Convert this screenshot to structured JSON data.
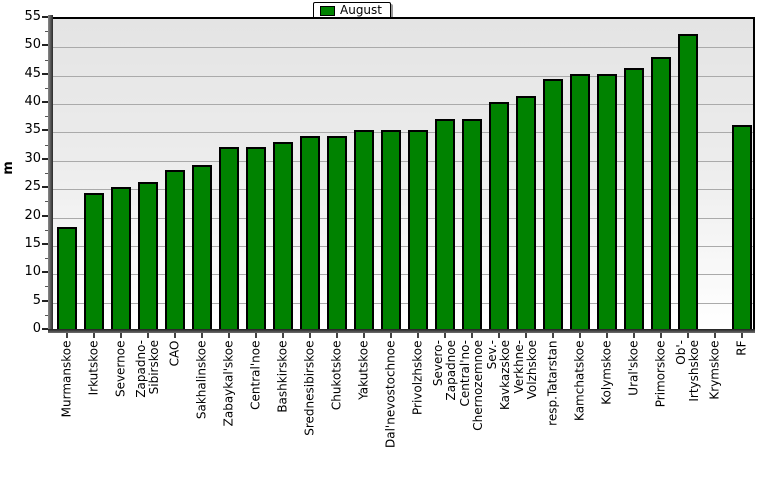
{
  "chart_data": {
    "type": "bar",
    "title": "",
    "ylabel": "m",
    "xlabel": "",
    "ylim": [
      0,
      55
    ],
    "ytick_step": 5,
    "ytick_labels": [
      "0",
      "5",
      "10",
      "15",
      "20",
      "25",
      "30",
      "35",
      "40",
      "45",
      "50",
      "55"
    ],
    "grid": "horizontal-major",
    "legend": {
      "position": "top-center",
      "entries": [
        {
          "label": "August",
          "color": "#008200"
        }
      ]
    },
    "categories": [
      "Murmanskoe",
      "Irkutskoe",
      "Severnoe",
      "Zapadno-Sibirskoe",
      "CAO",
      "Sakhalinskoe",
      "Zabaykal'skoe",
      "Central'noe",
      "Bashkirskoe",
      "Srednesibirskoe",
      "Chukotskoe",
      "Yakutskoe",
      "Dal'nevostochnoe",
      "Privolzhskoe",
      "Severo-Zapadnoe",
      "Central'no-Chernozemnoe",
      "Sev.-Kavkazskoe",
      "Verkhne-Volzhskoe",
      "resp.Tatarstan",
      "Kamchatskoe",
      "Kolymskoe",
      "Ural'skoe",
      "Primorskoe",
      "Ob'-Irtyshskoe",
      "Krymskoe",
      "RF"
    ],
    "category_label_lines": [
      [
        "Murmanskoe"
      ],
      [
        "Irkutskoe"
      ],
      [
        "Severnoe"
      ],
      [
        "Zapadno-",
        "Sibirskoe"
      ],
      [
        "CAO"
      ],
      [
        "Sakhalinskoe"
      ],
      [
        "Zabaykal'skoe"
      ],
      [
        "Central'noe"
      ],
      [
        "Bashkirskoe"
      ],
      [
        "Srednesibirskoe"
      ],
      [
        "Chukotskoe"
      ],
      [
        "Yakutskoe"
      ],
      [
        "Dal'nevostochnoe"
      ],
      [
        "Privolzhskoe"
      ],
      [
        "Severo-",
        "Zapadnoe"
      ],
      [
        "Central'no-",
        "Chernozemnoe"
      ],
      [
        "Sev.-",
        "Kavkazskoe"
      ],
      [
        "Verkhne-",
        "Volzhskoe"
      ],
      [
        "resp.Tatarstan"
      ],
      [
        "Kamchatskoe"
      ],
      [
        "Kolymskoe"
      ],
      [
        "Ural'skoe"
      ],
      [
        "Primorskoe"
      ],
      [
        "Ob'-",
        "Irtyshskoe"
      ],
      [
        "Krymskoe"
      ],
      [
        "RF"
      ]
    ],
    "series": [
      {
        "name": "August",
        "color": "#008200",
        "values": [
          18,
          24,
          25,
          26,
          28,
          29,
          32,
          32,
          33,
          34,
          34,
          35,
          35,
          35,
          37,
          37,
          40,
          41,
          44,
          45,
          45,
          46,
          48,
          52,
          0,
          36
        ]
      }
    ]
  },
  "colors": {
    "bar_fill": "#008200",
    "bar_border": "#000000",
    "gridline": "#aaaaaa",
    "plot_bg_top": "#e4e4e4",
    "plot_bg_bottom": "#ffffff",
    "axis": "#2a2a2a",
    "background": "#ffffff"
  }
}
